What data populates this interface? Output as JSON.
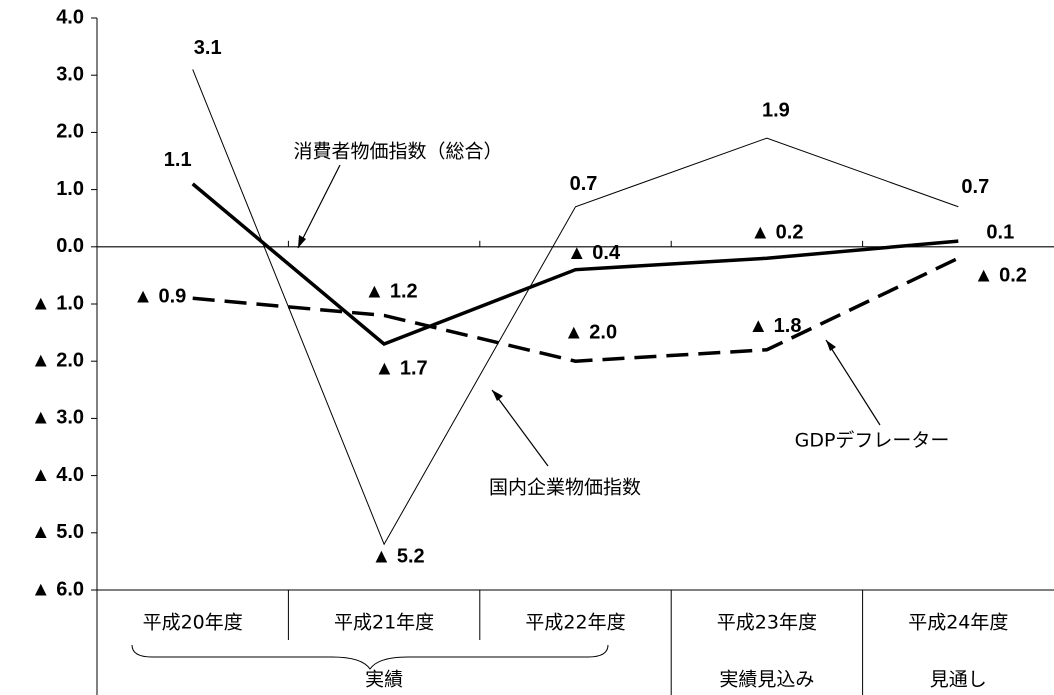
{
  "chart_data": {
    "type": "line",
    "categories": [
      "平成20年度",
      "平成21年度",
      "平成22年度",
      "平成23年度",
      "平成24年度"
    ],
    "category_groups": [
      {
        "label": "実績",
        "categories": [
          "平成20年度",
          "平成21年度",
          "平成22年度"
        ]
      },
      {
        "label": "実績見込み",
        "categories": [
          "平成23年度"
        ]
      },
      {
        "label": "見通し",
        "categories": [
          "平成24年度"
        ]
      }
    ],
    "series": [
      {
        "name": "国内企業物価指数",
        "color": "#000000",
        "style": "thin",
        "values": [
          3.1,
          -5.2,
          0.7,
          1.9,
          0.7
        ],
        "value_labels": [
          "3.1",
          "▲ 5.2",
          "0.7",
          "1.9",
          "0.7"
        ]
      },
      {
        "name": "消費者物価指数（総合）",
        "color": "#000000",
        "style": "thick",
        "values": [
          1.1,
          -1.7,
          -0.4,
          -0.2,
          0.1
        ],
        "value_labels": [
          "1.1",
          "▲ 1.7",
          "▲ 0.4",
          "▲ 0.2",
          "0.1"
        ]
      },
      {
        "name": "GDPデフレーター",
        "color": "#000000",
        "style": "dashed",
        "values": [
          -0.9,
          -1.2,
          -2.0,
          -1.8,
          -0.2
        ],
        "value_labels": [
          "▲ 0.9",
          "▲ 1.2",
          "▲ 2.0",
          "▲ 1.8",
          "▲ 0.2"
        ]
      }
    ],
    "ylim": [
      -6,
      4
    ],
    "yticks": [
      {
        "value": 4,
        "label": "4.0"
      },
      {
        "value": 3,
        "label": "3.0"
      },
      {
        "value": 2,
        "label": "2.0"
      },
      {
        "value": 1,
        "label": "1.0"
      },
      {
        "value": 0,
        "label": "0.0"
      },
      {
        "value": -1,
        "label": "▲ 1.0"
      },
      {
        "value": -2,
        "label": "▲ 2.0"
      },
      {
        "value": -3,
        "label": "▲ 3.0"
      },
      {
        "value": -4,
        "label": "▲ 4.0"
      },
      {
        "value": -5,
        "label": "▲ 5.0"
      },
      {
        "value": -6,
        "label": "▲ 6.0"
      }
    ],
    "grid": false
  }
}
